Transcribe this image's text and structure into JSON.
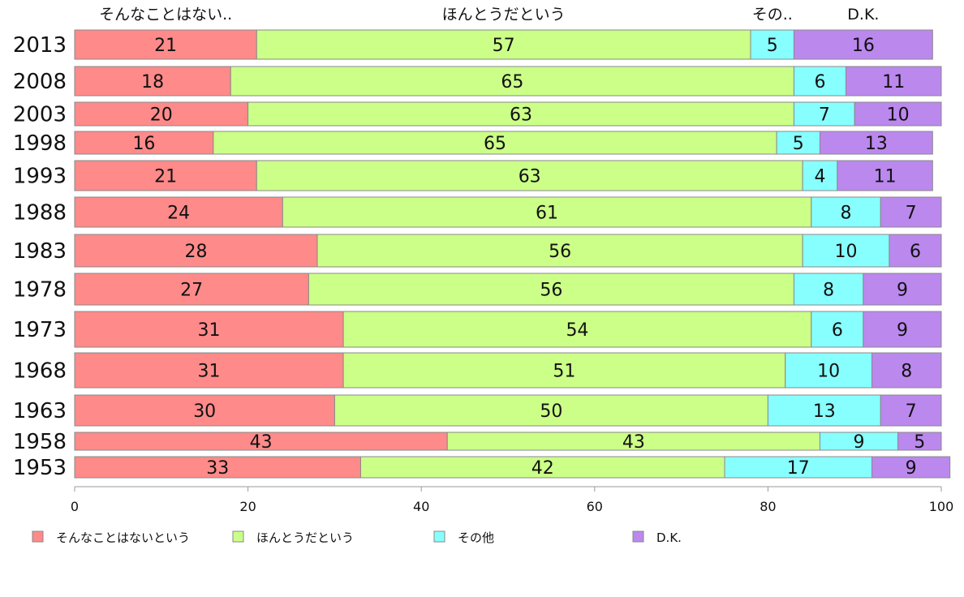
{
  "chart_data": {
    "type": "bar",
    "orientation": "horizontal",
    "stacked": true,
    "categories": [
      "2013",
      "2008",
      "2003",
      "1998",
      "1993",
      "1988",
      "1983",
      "1978",
      "1973",
      "1968",
      "1963",
      "1958",
      "1953"
    ],
    "series": [
      {
        "name": "そんなことはないという",
        "top_label": "そんなことはない..",
        "color": "#ff8a8a",
        "values": [
          21,
          18,
          20,
          16,
          21,
          24,
          28,
          27,
          31,
          31,
          30,
          43,
          33
        ]
      },
      {
        "name": "ほんとうだという",
        "top_label": "ほんとうだという",
        "color": "#ccff88",
        "values": [
          57,
          65,
          63,
          65,
          63,
          61,
          56,
          56,
          54,
          51,
          50,
          43,
          42
        ]
      },
      {
        "name": "その他",
        "top_label": "その..",
        "color": "#88ffff",
        "values": [
          5,
          6,
          7,
          5,
          4,
          8,
          10,
          8,
          6,
          10,
          13,
          9,
          17
        ]
      },
      {
        "name": "D.K.",
        "top_label": "D.K.",
        "color": "#bb88ee",
        "values": [
          16,
          11,
          10,
          13,
          11,
          7,
          6,
          9,
          9,
          8,
          7,
          5,
          9
        ]
      }
    ],
    "xlim": [
      0,
      100
    ],
    "xticks": [
      0,
      20,
      40,
      60,
      80,
      100
    ],
    "legend_position": "bottom",
    "grid": false
  }
}
